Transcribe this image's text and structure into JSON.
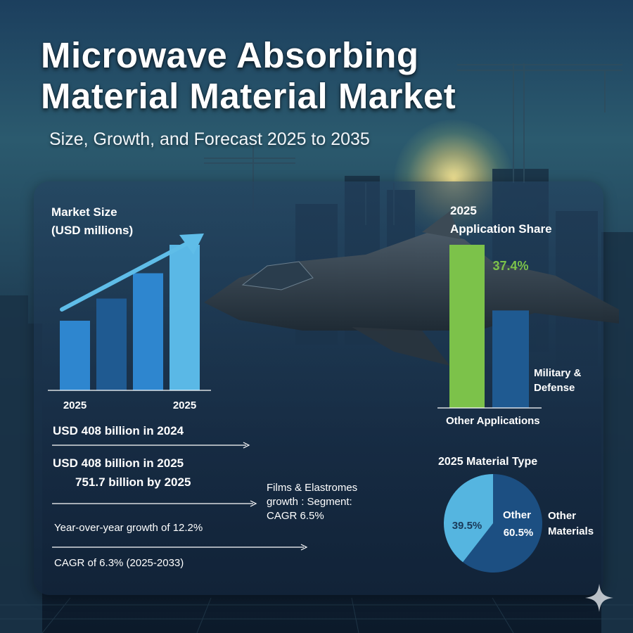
{
  "title_line1": "Microwave Absorbing",
  "title_line2": "Material Material Market",
  "subtitle": "Size, Growth, and Forecast 2025 to 2035",
  "colors": {
    "bar_light": "#5ab8e6",
    "bar_mid": "#2e86cf",
    "bar_dark": "#1f5a91",
    "green": "#7cc24a",
    "pie_light": "#55b5e0",
    "pie_dark": "#1c4f82",
    "arrow": "#5fbde8"
  },
  "market_size": {
    "heading_line1": "Market Size",
    "heading_line2": "(USD millions)"
  },
  "facts": {
    "line1": "USD 408 billion in 2024",
    "line2": "USD 408 billion in 2025",
    "line3": "751.7 billion by 2025",
    "line4": "Year-over-year growth of 12.2%",
    "line5": "CAGR of 6.3% (2025-2033)"
  },
  "segment_note": {
    "line1": "Films & Elastromes",
    "line2": "growth : Segment:",
    "line3": "CAGR 6.5%"
  },
  "chart_data": [
    {
      "type": "bar",
      "title": "Market Size (USD millions)",
      "categories": [
        "2025",
        "",
        "",
        "2025"
      ],
      "values": [
        2.2,
        2.9,
        3.7,
        4.6
      ],
      "ylim": [
        0,
        5
      ],
      "trend_arrow": true,
      "grid": false
    },
    {
      "type": "bar",
      "title": "2025 Application Share",
      "title_line1": "2025",
      "title_line2": "Application Share",
      "categories": [
        "Other Applications",
        "Military & Defense"
      ],
      "category_label_line1": "Military &",
      "category_label_line2": "Defense",
      "values": [
        62.6,
        37.4
      ],
      "data_labels": [
        "",
        "37.4%"
      ],
      "ylim": [
        0,
        62.6
      ]
    },
    {
      "type": "pie",
      "title": "2025 Material Type",
      "slices": [
        {
          "label": "Other",
          "value": 60.5,
          "value_label": "60.5%"
        },
        {
          "label": "",
          "value": 39.5,
          "value_label": "39.5%"
        }
      ],
      "legend_line1": "Other",
      "legend_line2": "Materials"
    }
  ]
}
